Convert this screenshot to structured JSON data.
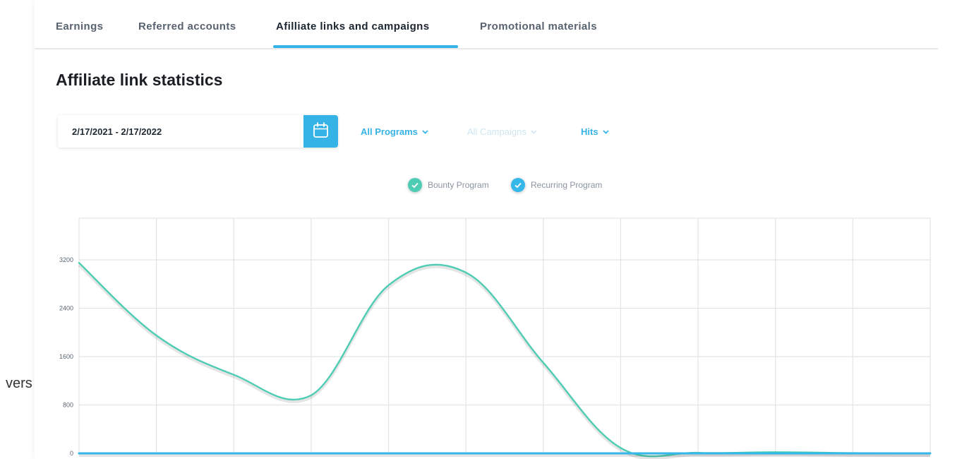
{
  "background_text": "vers",
  "tabs": [
    {
      "label": "Earnings",
      "active": false
    },
    {
      "label": "Referred accounts",
      "active": false
    },
    {
      "label": "Afilliate links and campaigns",
      "active": true
    },
    {
      "label": "Promotional materials",
      "active": false
    }
  ],
  "section": {
    "title": "Affiliate link statistics"
  },
  "filters": {
    "date_range": "2/17/2021 - 2/17/2022",
    "programs": "All Programs",
    "campaigns": "All Campaigns",
    "metric": "Hits"
  },
  "colors": {
    "accent": "#35b3e6",
    "bounty": "#4ecdb4",
    "recurring": "#36b7ea",
    "grid": "#e2e4e7",
    "disabled": "#cfe6f1"
  },
  "chart_data": {
    "type": "line",
    "yticks": [
      "3200",
      "2400",
      "1600",
      "800",
      "0"
    ],
    "ylim": [
      0,
      4000
    ],
    "x": [
      0,
      1,
      2,
      3,
      4,
      5,
      6,
      7,
      8,
      9,
      10,
      11
    ],
    "series": [
      {
        "name": "Bounty Program",
        "values": [
          3150,
          1950,
          1300,
          960,
          2780,
          2990,
          1500,
          90,
          10,
          20,
          5,
          0
        ]
      },
      {
        "name": "Recurring Program",
        "values": [
          0,
          0,
          0,
          0,
          0,
          0,
          0,
          0,
          0,
          0,
          0,
          0
        ]
      }
    ],
    "legend": "top-center",
    "grid": true
  }
}
